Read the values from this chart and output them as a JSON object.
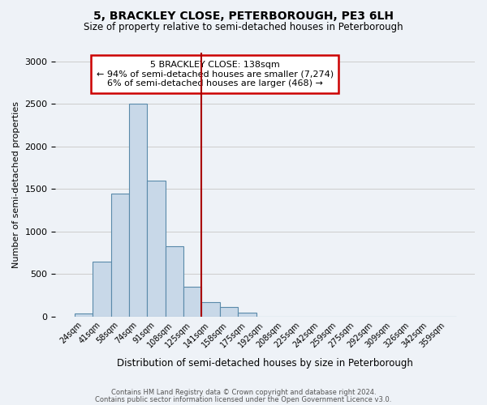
{
  "title": "5, BRACKLEY CLOSE, PETERBOROUGH, PE3 6LH",
  "subtitle": "Size of property relative to semi-detached houses in Peterborough",
  "xlabel": "Distribution of semi-detached houses by size in Peterborough",
  "ylabel": "Number of semi-detached properties",
  "footnote1": "Contains HM Land Registry data © Crown copyright and database right 2024.",
  "footnote2": "Contains public sector information licensed under the Open Government Licence v3.0.",
  "bin_labels": [
    "24sqm",
    "41sqm",
    "58sqm",
    "74sqm",
    "91sqm",
    "108sqm",
    "125sqm",
    "141sqm",
    "158sqm",
    "175sqm",
    "192sqm",
    "208sqm",
    "225sqm",
    "242sqm",
    "259sqm",
    "275sqm",
    "292sqm",
    "309sqm",
    "326sqm",
    "342sqm",
    "359sqm"
  ],
  "bar_values": [
    40,
    650,
    1450,
    2500,
    1600,
    830,
    350,
    170,
    115,
    50,
    5,
    5,
    5,
    0,
    5,
    0,
    0,
    0,
    0,
    0,
    0
  ],
  "bar_color": "#c8d8e8",
  "bar_edge_color": "#5a8aaa",
  "vline_position": 6.5,
  "vline_color": "#aa0000",
  "ylim": [
    0,
    3100
  ],
  "yticks": [
    0,
    500,
    1000,
    1500,
    2000,
    2500,
    3000
  ],
  "annotation_title": "5 BRACKLEY CLOSE: 138sqm",
  "annotation_line1": "← 94% of semi-detached houses are smaller (7,274)",
  "annotation_line2": "6% of semi-detached houses are larger (468) →",
  "annotation_box_color": "#ffffff",
  "annotation_box_edge_color": "#cc0000",
  "bg_color": "#eef2f7"
}
